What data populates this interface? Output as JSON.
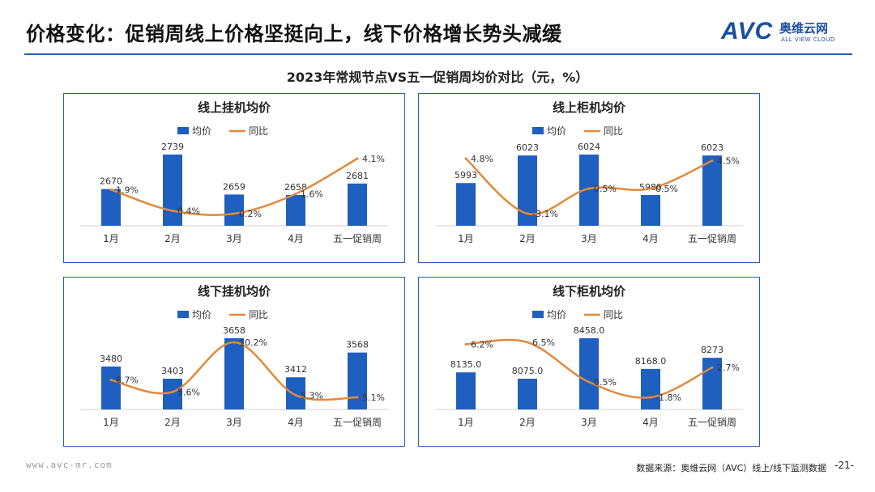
{
  "header": {
    "title": "价格变化：促销周线上价格坚挺向上，线下价格增长势头减缓",
    "logo_mark": "AVC",
    "logo_cn": "奥维云网",
    "logo_en": "ALL VIEW CLOUD"
  },
  "subtitle": "2023年常规节点VS五一促销周均价对比（元，%）",
  "legend": {
    "bar": "均价",
    "line": "同比"
  },
  "colors": {
    "bar": "#1f5fbf",
    "line": "#e08a3c",
    "border": "#2b5fb4"
  },
  "chart_data": [
    {
      "type": "bar",
      "title": "线上挂机均价",
      "categories": [
        "1月",
        "2月",
        "3月",
        "4月",
        "五一促销周"
      ],
      "series": [
        {
          "name": "均价",
          "values": [
            2670,
            2739,
            2659,
            2658,
            2681
          ],
          "labels": [
            "2670",
            "2739",
            "2659",
            "2658",
            "2681"
          ]
        },
        {
          "name": "同比",
          "type": "line",
          "values": [
            1.9,
            0.4,
            0.2,
            1.6,
            4.1
          ],
          "labels": [
            "1.9%",
            "0.4%",
            "0.2%",
            "1.6%",
            "4.1%"
          ]
        }
      ]
    },
    {
      "type": "bar",
      "title": "线上柜机均价",
      "categories": [
        "1月",
        "2月",
        "3月",
        "4月",
        "五一促销周"
      ],
      "series": [
        {
          "name": "均价",
          "values": [
            5993,
            6023,
            6024,
            5980,
            6023
          ],
          "labels": [
            "5993",
            "6023",
            "6024",
            "5980",
            "6023"
          ]
        },
        {
          "name": "同比",
          "type": "line",
          "values": [
            4.8,
            -3.1,
            0.5,
            0.5,
            4.5
          ],
          "labels": [
            "4.8%",
            "-3.1%",
            "0.5%",
            "0.5%",
            "4.5%"
          ]
        }
      ]
    },
    {
      "type": "bar",
      "title": "线下挂机均价",
      "categories": [
        "1月",
        "2月",
        "3月",
        "4月",
        "五一促销周"
      ],
      "series": [
        {
          "name": "均价",
          "values": [
            3480,
            3403,
            3658,
            3412,
            3568
          ],
          "labels": [
            "3480",
            "3403",
            "3658",
            "3412",
            "3568"
          ]
        },
        {
          "name": "同比",
          "type": "line",
          "values": [
            6.7,
            5.6,
            10.2,
            5.3,
            5.1
          ],
          "labels": [
            "6.7%",
            "5.6%",
            "10.2%",
            "5.3%",
            "5.1%"
          ]
        }
      ]
    },
    {
      "type": "bar",
      "title": "线下柜机均价",
      "categories": [
        "1月",
        "2月",
        "3月",
        "4月",
        "五一促销周"
      ],
      "series": [
        {
          "name": "均价",
          "values": [
            8135,
            8075,
            8458,
            8168,
            8273
          ],
          "labels": [
            "8135.0",
            "8075.0",
            "8458.0",
            "8168.0",
            "8273"
          ]
        },
        {
          "name": "同比",
          "type": "line",
          "values": [
            6.2,
            6.5,
            0.5,
            -1.8,
            2.7
          ],
          "labels": [
            "6.2%",
            "6.5%",
            "0.5%",
            "-1.8%",
            "2.7%"
          ]
        }
      ]
    }
  ],
  "footer": {
    "website": "www.avc-mr.com",
    "source": "数据来源：奥维云网（AVC）线上/线下监测数据",
    "page": "-21-"
  }
}
